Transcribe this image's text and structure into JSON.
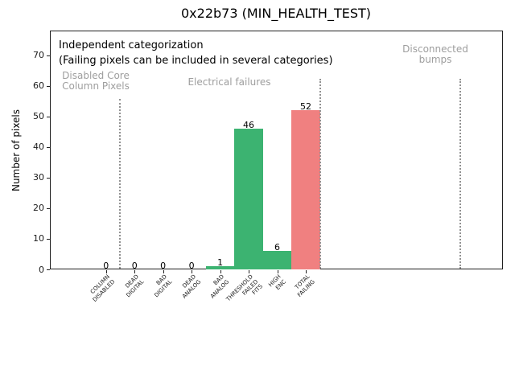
{
  "chart_data": {
    "type": "bar",
    "title": "0x22b73 (MIN_HEALTH_TEST)",
    "xlabel": "",
    "ylabel": "Number of pixels",
    "categories": [
      "COLUMN\nDISABLED",
      "DEAD\nDIGITAL",
      "BAD\nDIGITAL",
      "DEAD\nANALOG",
      "BAD\nANALOG",
      "THRESHOLD\nFAILED\nFITS",
      "HIGH\nENC",
      "TOTAL\nFAILING"
    ],
    "values": [
      0,
      0,
      0,
      0,
      1,
      46,
      6,
      52
    ],
    "value_labels": [
      "0",
      "0",
      "0",
      "0",
      "1",
      "46",
      "6",
      "52"
    ],
    "bar_colors": [
      "#3cb371",
      "#3cb371",
      "#3cb371",
      "#3cb371",
      "#3cb371",
      "#3cb371",
      "#3cb371",
      "#f08080"
    ],
    "y_tick_labels": [
      "0",
      "10",
      "20",
      "30",
      "40",
      "50",
      "60",
      "70"
    ],
    "y_ticks": [
      0,
      10,
      20,
      30,
      40,
      50,
      60,
      70
    ],
    "ylim": [
      0,
      78
    ],
    "grid": false,
    "legend": null,
    "separators_x_data": [
      0.5,
      7.5,
      12.4
    ],
    "annotations": {
      "line1": "Independent categorization",
      "line2": "(Failing pixels can be included in several categories)",
      "region_disabled": "Disabled Core\nColumn Pixels",
      "region_electrical": "Electrical failures",
      "region_disconnected": "Disconnected\nbumps"
    }
  },
  "colors": {
    "bar_green": "#3cb371",
    "bar_red": "#f08080",
    "gray_text": "#9e9e9e",
    "separator_gray": "#929292"
  }
}
